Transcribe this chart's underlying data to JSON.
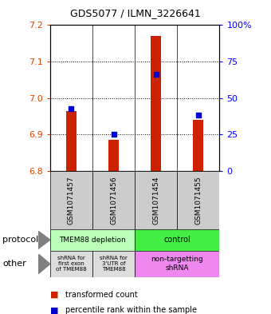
{
  "title": "GDS5077 / ILMN_3226641",
  "samples": [
    "GSM1071457",
    "GSM1071456",
    "GSM1071454",
    "GSM1071455"
  ],
  "red_values": [
    6.965,
    6.885,
    7.17,
    6.94
  ],
  "blue_values": [
    6.972,
    6.9,
    7.065,
    6.953
  ],
  "ymin": 6.8,
  "ymax": 7.2,
  "yticks_left": [
    6.8,
    6.9,
    7.0,
    7.1,
    7.2
  ],
  "yticks_right": [
    0,
    25,
    50,
    75,
    100
  ],
  "bar_width": 0.25,
  "red_color": "#cc2200",
  "blue_color": "#0000cc",
  "protocol_labels": [
    "TMEM88 depletion",
    "control"
  ],
  "protocol_colors": [
    "#bbffbb",
    "#44ee44"
  ],
  "other_label1": "shRNA for\nfirst exon\nof TMEM88",
  "other_label2": "shRNA for\n3'UTR of\nTMEM88",
  "other_label3": "non-targetting\nshRNA",
  "other_color12": "#dddddd",
  "other_color3": "#ee88ee",
  "legend_red": "transformed count",
  "legend_blue": "percentile rank within the sample",
  "sample_box_color": "#cccccc",
  "title_fontsize": 9
}
